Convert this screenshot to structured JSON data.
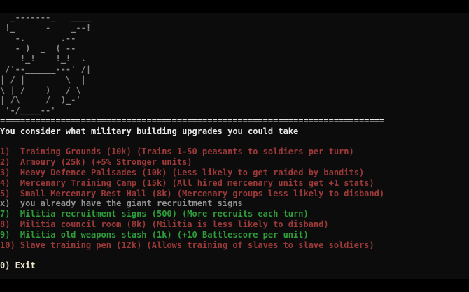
{
  "colors": {
    "background": "#0c0c0c",
    "letterbox": "#000000",
    "art": "#8a8a8a",
    "white": "#e9e9e9",
    "gray": "#939393",
    "red": "#9e3939",
    "green": "#2f9e3a",
    "cream": "#efe9d2"
  },
  "terminal": {
    "ascii_art": [
      "  _-------_   ____",
      " !_      -    _--!",
      "   -.       .--",
      "   - )  _  ( --",
      "    !_!    !_!  .",
      " /'--______---' /|",
      "| / |        \\  |",
      "\\ | /    )   / \\",
      "| /\\     /  )_-'",
      " '-/____--'"
    ],
    "divider": "============================================================================",
    "title": "You consider what military building upgrades you could take",
    "lines": [
      {
        "name": "ascii-art-owl-row",
        "color": "art",
        "text": "  _-------_   ____"
      },
      {
        "name": "ascii-art-owl-row",
        "color": "art",
        "text": " !_      -    _--!"
      },
      {
        "name": "ascii-art-owl-row",
        "color": "art",
        "text": "   -.       .--"
      },
      {
        "name": "ascii-art-owl-row",
        "color": "art",
        "text": "   - )  _  ( --"
      },
      {
        "name": "ascii-art-owl-row",
        "color": "art",
        "text": "    !_!    !_!  ."
      },
      {
        "name": "ascii-art-owl-row",
        "color": "art",
        "text": " /'--______---' /|"
      },
      {
        "name": "ascii-art-owl-row",
        "color": "art",
        "text": "| / |        \\  |"
      },
      {
        "name": "ascii-art-owl-row",
        "color": "art",
        "text": "\\ | /    )   / \\"
      },
      {
        "name": "ascii-art-owl-row",
        "color": "art",
        "text": "| /\\     /  )_-'"
      },
      {
        "name": "ascii-art-owl-row",
        "color": "art",
        "text": " '-/____--'"
      },
      {
        "name": "divider-line",
        "color": "white",
        "text": "============================================================================"
      },
      {
        "name": "prompt-title",
        "color": "white",
        "text": "You consider what military building upgrades you could take"
      },
      {
        "name": "blank-line",
        "color": "white",
        "text": ""
      },
      {
        "name": "menu-option-1",
        "color": "red",
        "text": "1)  Training Grounds (10k) (Trains 1-50 peasants to soldiers per turn)"
      },
      {
        "name": "menu-option-2",
        "color": "red",
        "text": "2)  Armoury (25k) (+5% Stronger units)"
      },
      {
        "name": "menu-option-3",
        "color": "red",
        "text": "3)  Heavy Defence Palisades (10k) (Less likely to get raided by bandits)"
      },
      {
        "name": "menu-option-4",
        "color": "red",
        "text": "4)  Mercenary Training Camp (15k) (All hired mercenary units get +1 stats)"
      },
      {
        "name": "menu-option-5",
        "color": "red",
        "text": "5)  Small Mercenary Rest Hall (8k) (Mercenary groups less likely to disband)"
      },
      {
        "name": "menu-option-x-owned",
        "color": "gray",
        "text": "x)  you already have the giant recruitment signs"
      },
      {
        "name": "menu-option-7",
        "color": "green",
        "text": "7)  Militia recruitment signs (500) (More recruits each turn)"
      },
      {
        "name": "menu-option-8",
        "color": "red",
        "text": "8)  Militia council room (8k) (Militia is less likely to disband)"
      },
      {
        "name": "menu-option-9",
        "color": "green",
        "text": "9)  Militia old weapons stash (1k) (+10 Battlescore per unit)"
      },
      {
        "name": "menu-option-10",
        "color": "red",
        "text": "10) Slave training pen (12k) (Allows training of slaves to slave soldiers)"
      },
      {
        "name": "blank-line",
        "color": "white",
        "text": ""
      },
      {
        "name": "menu-option-exit",
        "color": "cream",
        "text": "0) Exit"
      }
    ]
  }
}
